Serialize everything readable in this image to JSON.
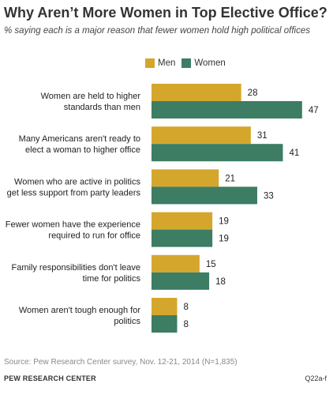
{
  "title": "Why Aren’t More Women in Top Elective Office?",
  "subtitle": "% saying each is a major reason that fewer women hold high political offices",
  "colors": {
    "men": "#d4a72c",
    "women": "#3c7d64"
  },
  "legend": {
    "men": "Men",
    "women": "Women"
  },
  "chart_data": {
    "type": "bar",
    "orientation": "horizontal",
    "categories": [
      [
        "Women are held to higher",
        "standards than men"
      ],
      [
        "Many Americans aren't ready to",
        "elect a woman to higher office"
      ],
      [
        "Women who are active in politics",
        "get less support from party leaders"
      ],
      [
        "Fewer women have  the experience",
        "required to run for office"
      ],
      [
        "Family responsibilities don't leave",
        "time for politics"
      ],
      [
        "Women aren't tough enough for",
        "politics"
      ]
    ],
    "series": [
      {
        "name": "Men",
        "values": [
          28,
          31,
          21,
          19,
          15,
          8
        ]
      },
      {
        "name": "Women",
        "values": [
          47,
          41,
          33,
          19,
          18,
          8
        ]
      }
    ],
    "legend_position": "top",
    "grid": false
  },
  "source": "Source: Pew Research Center survey, Nov. 12-21, 2014 (N=1,835)",
  "footer": "PEW RESEARCH CENTER",
  "code": "Q22a-f"
}
